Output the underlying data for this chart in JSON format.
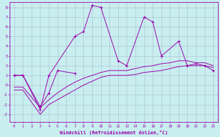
{
  "xlabel": "Windchill (Refroidissement éolien,°C)",
  "bg_color": "#c8eef0",
  "line_color": "#9900aa",
  "grid_color": "#aabbcc",
  "spine_color": "#9900aa",
  "ylim": [
    -3.8,
    8.5
  ],
  "xlim": [
    -0.5,
    23.5
  ],
  "yticks": [
    -3,
    -2,
    -1,
    0,
    1,
    2,
    3,
    4,
    5,
    6,
    7,
    8
  ],
  "xticks": [
    0,
    1,
    2,
    3,
    4,
    5,
    6,
    7,
    8,
    9,
    10,
    11,
    12,
    13,
    14,
    15,
    16,
    17,
    18,
    19,
    20,
    21,
    22,
    23
  ],
  "s1_x": [
    0,
    1,
    3,
    4,
    7,
    8,
    9,
    10,
    12,
    13,
    15,
    16,
    17,
    19,
    20,
    21,
    22,
    23
  ],
  "s1_y": [
    1.0,
    1.0,
    -2.5,
    1.0,
    5.0,
    5.5,
    8.2,
    8.0,
    2.5,
    2.0,
    7.0,
    6.5,
    3.0,
    4.5,
    2.0,
    2.2,
    2.0,
    1.5
  ],
  "s2_x": [
    0,
    1,
    3,
    4,
    5,
    7
  ],
  "s2_y": [
    1.0,
    1.0,
    -2.2,
    -0.8,
    1.5,
    1.2
  ],
  "sl1_x": [
    0,
    1,
    3,
    4,
    5,
    6,
    7,
    8,
    9,
    10,
    11,
    12,
    13,
    14,
    15,
    16,
    17,
    18,
    19,
    20,
    21,
    22,
    23
  ],
  "sl1_y": [
    -0.5,
    -0.5,
    -3.0,
    -2.0,
    -1.5,
    -1.0,
    -0.5,
    0.0,
    0.4,
    0.8,
    1.0,
    1.0,
    1.0,
    1.1,
    1.3,
    1.4,
    1.5,
    1.7,
    1.9,
    2.0,
    2.0,
    2.0,
    1.8
  ],
  "sl2_x": [
    0,
    1,
    3,
    4,
    5,
    6,
    7,
    8,
    9,
    10,
    11,
    12,
    13,
    14,
    15,
    16,
    17,
    18,
    19,
    20,
    21,
    22,
    23
  ],
  "sl2_y": [
    -0.2,
    -0.2,
    -2.3,
    -1.5,
    -0.8,
    -0.2,
    0.3,
    0.7,
    1.0,
    1.3,
    1.5,
    1.5,
    1.5,
    1.7,
    1.9,
    2.0,
    2.2,
    2.3,
    2.5,
    2.5,
    2.3,
    2.3,
    2.0
  ]
}
